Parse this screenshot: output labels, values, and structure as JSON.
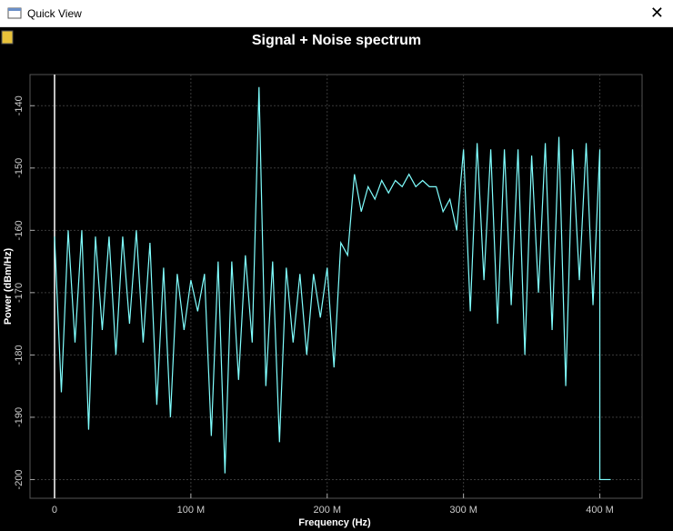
{
  "window_title": "Quick View",
  "chart_data": {
    "type": "line",
    "title": "Signal + Noise spectrum",
    "xlabel": "Frequency (Hz)",
    "ylabel": "Power (dBm/Hz)",
    "color": "#80ffff",
    "grid": true,
    "xlim": [
      -18000000,
      431000000
    ],
    "ylim": [
      -203,
      -135
    ],
    "xticks": [
      0,
      {
        "value": 100000000,
        "label": "100 M"
      },
      {
        "value": 200000000,
        "label": "200 M"
      },
      {
        "value": 300000000,
        "label": "300 M"
      },
      {
        "value": 400000000,
        "label": "400 M"
      }
    ],
    "yticks": [
      -140,
      -150,
      -160,
      -170,
      -180,
      -190,
      -200
    ],
    "x": [
      0,
      5000000,
      10000000,
      15000000,
      20000000,
      25000000,
      30000000,
      35000000,
      40000000,
      45000000,
      50000000,
      55000000,
      60000000,
      65000000,
      70000000,
      75000000,
      80000000,
      85000000,
      90000000,
      95000000,
      100000000,
      105000000,
      110000000,
      115000000,
      120000000,
      125000000,
      130000000,
      135000000,
      140000000,
      145000000,
      150000000,
      155000000,
      160000000,
      165000000,
      170000000,
      175000000,
      180000000,
      185000000,
      190000000,
      195000000,
      200000000,
      205000000,
      210000000,
      215000000,
      220000000,
      225000000,
      230000000,
      235000000,
      240000000,
      245000000,
      250000000,
      255000000,
      260000000,
      265000000,
      270000000,
      275000000,
      280000000,
      285000000,
      290000000,
      295000000,
      300000000,
      305000000,
      310000000,
      315000000,
      320000000,
      325000000,
      330000000,
      335000000,
      340000000,
      345000000,
      350000000,
      355000000,
      360000000,
      365000000,
      370000000,
      375000000,
      380000000,
      385000000,
      390000000,
      395000000,
      400000000,
      400000000,
      408000000
    ],
    "values": [
      -161,
      -186,
      -160,
      -178,
      -160,
      -192,
      -161,
      -176,
      -161,
      -180,
      -161,
      -175,
      -160,
      -178,
      -162,
      -188,
      -166,
      -190,
      -167,
      -176,
      -168,
      -173,
      -167,
      -193,
      -165,
      -199,
      -165,
      -184,
      -164,
      -178,
      -137,
      -185,
      -165,
      -194,
      -166,
      -178,
      -167,
      -180,
      -167,
      -174,
      -166,
      -182,
      -162,
      -164,
      -151,
      -157,
      -153,
      -155,
      -152,
      -154,
      -152,
      -153,
      -151,
      -153,
      -152,
      -153,
      -153,
      -157,
      -155,
      -160,
      -147,
      -173,
      -146,
      -168,
      -147,
      -175,
      -147,
      -172,
      -147,
      -180,
      -148,
      -170,
      -146,
      -176,
      -145,
      -185,
      -147,
      -168,
      -146,
      -172,
      -147,
      -200,
      -200
    ]
  }
}
